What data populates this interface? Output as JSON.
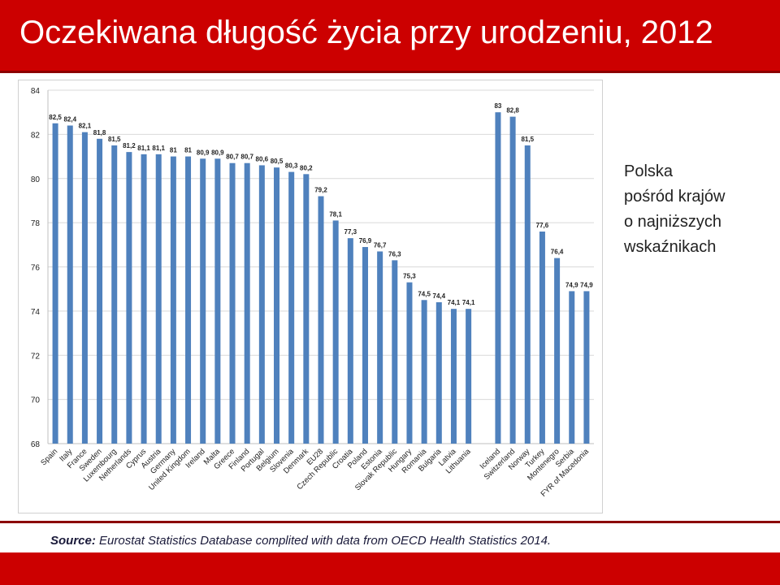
{
  "header": {
    "title": "Oczekiwana długość życia przy urodzeniu, 2012"
  },
  "side_note": {
    "lines": [
      "Polska",
      "pośród krajów",
      "o najniższych",
      "wskaźnikach"
    ]
  },
  "footer": {
    "source_label": "Source:",
    "source_text": " Eurostat Statistics Database complited with data from OECD Health Statistics 2014."
  },
  "colors": {
    "accent": "#cc0000",
    "bar": "#4f81bd",
    "grid": "#d9d9d9"
  },
  "chart_data": {
    "type": "bar",
    "title": "",
    "xlabel": "",
    "ylabel": "",
    "ylim": [
      68,
      84
    ],
    "yticks": [
      68,
      70,
      72,
      74,
      76,
      78,
      80,
      82,
      84
    ],
    "grid": true,
    "legend": "none",
    "categories": [
      "Spain",
      "Italy",
      "France",
      "Sweden",
      "Luxembourg",
      "Netherlands",
      "Cyprus",
      "Austria",
      "Germany",
      "United Kingdom",
      "Ireland",
      "Malta",
      "Greece",
      "Finland",
      "Portugal",
      "Belgium",
      "Slovenia",
      "Denmark",
      "EU28",
      "Czech Republic",
      "Croatia",
      "Poland",
      "Estonia",
      "Slovak Republic",
      "Hungary",
      "Romania",
      "Bulgaria",
      "Latvia",
      "Lithuania",
      "",
      "Iceland",
      "Switzerland",
      "Norway",
      "Turkey",
      "Montenegro",
      "Serbia",
      "FYR of Macedonia"
    ],
    "values": [
      82.5,
      82.4,
      82.1,
      81.8,
      81.5,
      81.2,
      81.1,
      81.1,
      81,
      81,
      80.9,
      80.9,
      80.7,
      80.7,
      80.6,
      80.5,
      80.3,
      80.2,
      79.2,
      78.1,
      77.3,
      76.9,
      76.7,
      76.3,
      75.3,
      74.5,
      74.4,
      74.1,
      74.1,
      null,
      83,
      82.8,
      81.5,
      77.6,
      76.4,
      74.9,
      74.9
    ],
    "data_labels": [
      "82,5",
      "82,4",
      "82,1",
      "81,8",
      "81,5",
      "81,2",
      "81,1",
      "81,1",
      "81",
      "81",
      "80,9",
      "80,9",
      "80,7",
      "80,7",
      "80,6",
      "80,5",
      "80,3",
      "80,2",
      "79,2",
      "78,1",
      "77,3",
      "76,9",
      "76,7",
      "76,3",
      "75,3",
      "74,5",
      "74,4",
      "74,1",
      "74,1",
      "",
      "83",
      "82,8",
      "81,5",
      "77,6",
      "76,4",
      "74,9",
      "74,9"
    ]
  }
}
